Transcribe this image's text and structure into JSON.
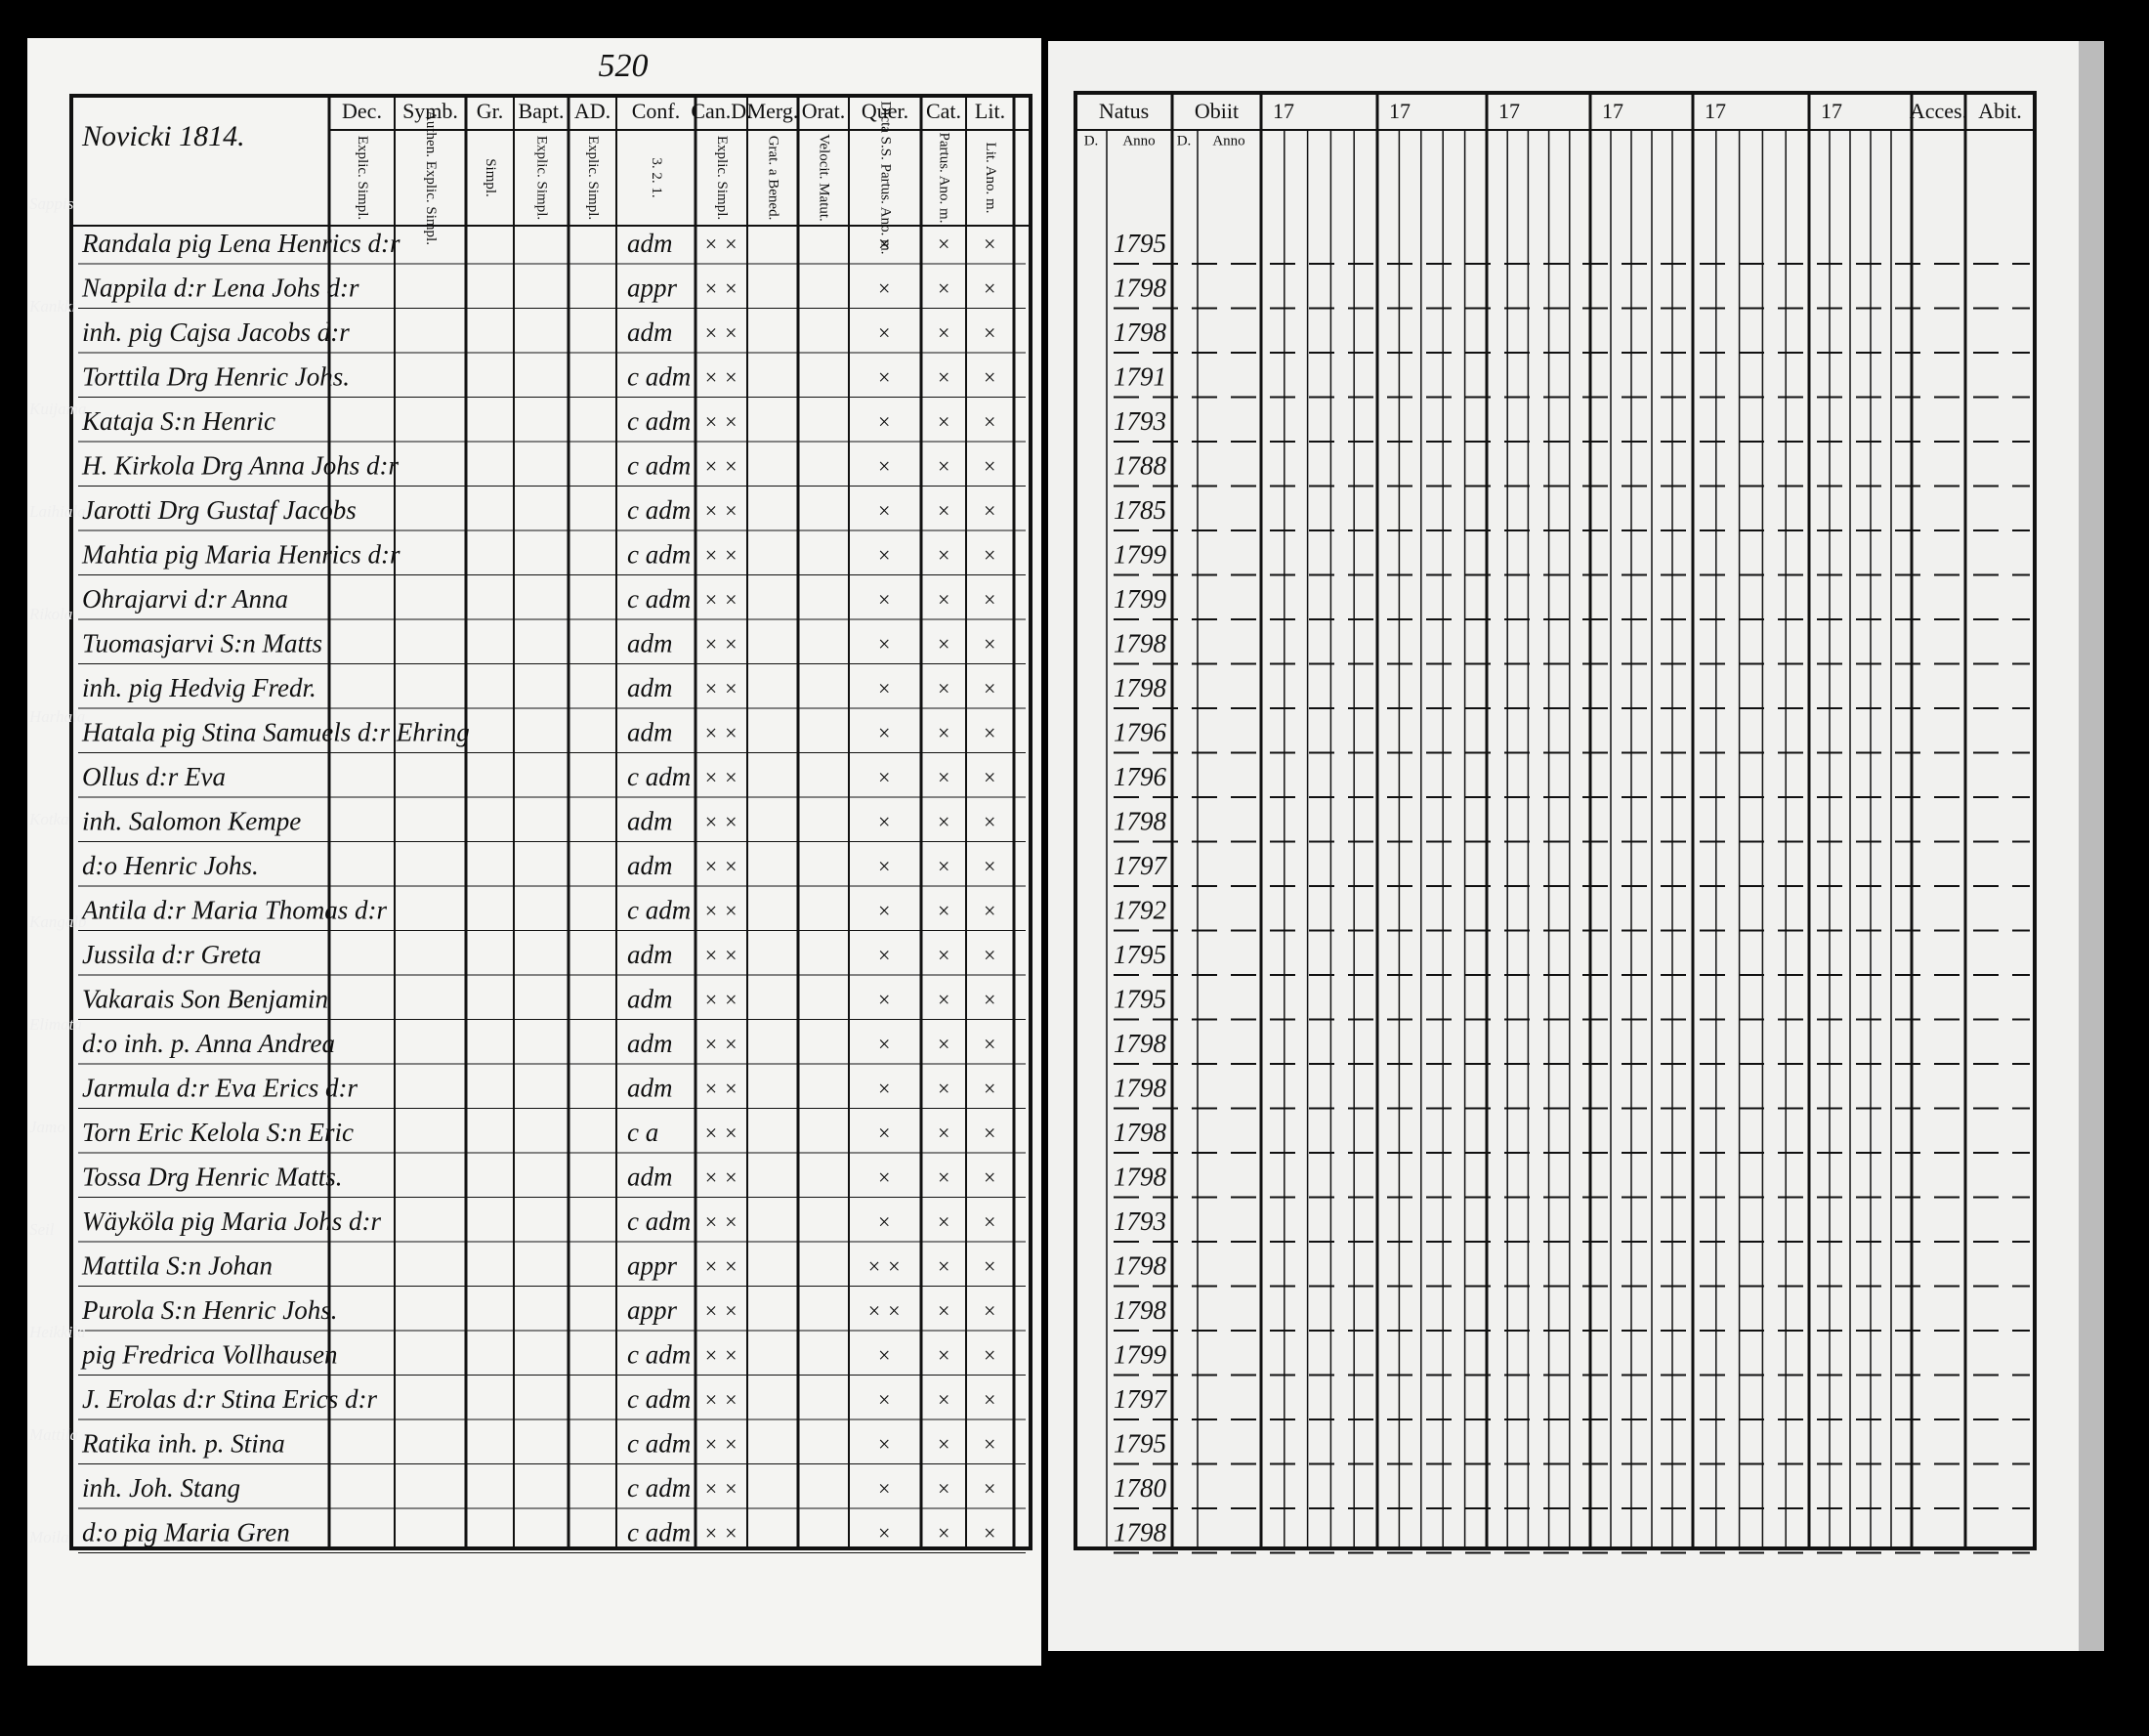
{
  "page_number": "520",
  "left_page": {
    "title": "Novicki 1814.",
    "column_headers": [
      "Dec.",
      "Symb.",
      "Gr.",
      "Bapt.",
      "AD.",
      "Conf.",
      "Can.D.",
      "Merg.",
      "Orat.",
      "Quer.",
      "Cat.",
      "Lit."
    ],
    "column_subheaders": [
      "Explic. Simpl.",
      "Authen. Explic. Simpl.",
      "Simpl.",
      "Explic. Simpl.",
      "Explic. Simpl.",
      "3. 2. 1.",
      "Explic. Simpl.",
      "Grat. a Bened.",
      "Velocit. Matut.",
      "Dicta S.S. Partus. Ano. m.",
      "Partus. Ano. m.",
      "Lit. Ano. m."
    ],
    "margin_notes": [
      "Sappis",
      "Kankki",
      "Kuijama",
      "Laihiala",
      "Rikola",
      "Harhala",
      "Kotka",
      "Kangalb",
      "Elimata",
      "Jamo",
      "Seil",
      "Heikkila",
      "Mattila",
      "Moila"
    ],
    "rows": [
      {
        "name": "Randala pig Lena Henrics d:r",
        "conf": "adm",
        "marks": [
          "× ×",
          "×",
          "×",
          "×"
        ]
      },
      {
        "name": "Nappila d:r Lena Johs d:r",
        "conf": "appr",
        "marks": [
          "× ×",
          "×",
          "×",
          "×"
        ]
      },
      {
        "name": "inh. pig Cajsa Jacobs d:r",
        "conf": "adm",
        "marks": [
          "× ×",
          "×",
          "×",
          "×"
        ]
      },
      {
        "name": "Torttila Drg Henric Johs.",
        "conf": "c adm",
        "marks": [
          "× ×",
          "×",
          "×",
          "×"
        ]
      },
      {
        "name": "Kataja S:n Henric",
        "conf": "c adm",
        "marks": [
          "× ×",
          "×",
          "×",
          "×"
        ]
      },
      {
        "name": "H. Kirkola Drg Anna Johs d:r",
        "conf": "c adm",
        "marks": [
          "× ×",
          "×",
          "×",
          "×"
        ]
      },
      {
        "name": "Jarotti Drg Gustaf Jacobs",
        "conf": "c adm",
        "marks": [
          "× ×",
          "×",
          "×",
          "×"
        ]
      },
      {
        "name": "Mahtia pig Maria Henrics d:r",
        "conf": "c adm",
        "marks": [
          "× ×",
          "×",
          "×",
          "×"
        ]
      },
      {
        "name": "Ohrajarvi d:r Anna",
        "conf": "c adm",
        "marks": [
          "× ×",
          "×",
          "×",
          "×"
        ]
      },
      {
        "name": "Tuomasjarvi S:n Matts",
        "conf": "adm",
        "marks": [
          "× ×",
          "×",
          "×",
          "×"
        ]
      },
      {
        "name": "inh. pig Hedvig Fredr.",
        "conf": "adm",
        "marks": [
          "× ×",
          "×",
          "×",
          "×"
        ]
      },
      {
        "name": "Hatala pig Stina Samuels d:r Ehring",
        "conf": "adm",
        "marks": [
          "× ×",
          "×",
          "×",
          "×"
        ]
      },
      {
        "name": "Ollus d:r Eva",
        "conf": "c adm",
        "marks": [
          "× ×",
          "×",
          "×",
          "×"
        ]
      },
      {
        "name": "inh. Salomon Kempe",
        "conf": "adm",
        "marks": [
          "× ×",
          "×",
          "×",
          "×"
        ]
      },
      {
        "name": "d:o Henric Johs.",
        "conf": "adm",
        "marks": [
          "× ×",
          "×",
          "×",
          "×"
        ]
      },
      {
        "name": "Antila d:r Maria Thomas d:r",
        "conf": "c adm",
        "marks": [
          "× ×",
          "×",
          "×",
          "×"
        ]
      },
      {
        "name": "Jussila d:r Greta",
        "conf": "adm",
        "marks": [
          "× ×",
          "×",
          "×",
          "×"
        ]
      },
      {
        "name": "Vakarais Son Benjamin",
        "conf": "adm",
        "marks": [
          "× ×",
          "×",
          "×",
          "×"
        ]
      },
      {
        "name": "d:o inh. p. Anna Andrea",
        "conf": "adm",
        "marks": [
          "× ×",
          "×",
          "×",
          "×"
        ]
      },
      {
        "name": "Jarmula d:r Eva Erics d:r",
        "conf": "adm",
        "marks": [
          "× ×",
          "×",
          "×",
          "×"
        ]
      },
      {
        "name": "Torn Eric Kelola S:n Eric",
        "conf": "c a",
        "marks": [
          "× ×",
          "×",
          "×",
          "×"
        ]
      },
      {
        "name": "Tossa Drg Henric Matts.",
        "conf": "adm",
        "marks": [
          "× ×",
          "×",
          "×",
          "×"
        ]
      },
      {
        "name": "Wäyköla pig Maria Johs d:r",
        "conf": "c adm",
        "marks": [
          "× ×",
          "×",
          "×",
          "×"
        ]
      },
      {
        "name": "Mattila S:n Johan",
        "conf": "appr",
        "marks": [
          "× ×",
          "× ×",
          "×",
          "×"
        ]
      },
      {
        "name": "Purola S:n Henric Johs.",
        "conf": "appr",
        "marks": [
          "× ×",
          "× ×",
          "×",
          "×"
        ]
      },
      {
        "name": "pig Fredrica Vollhausen",
        "conf": "c adm",
        "marks": [
          "× ×",
          "×",
          "×",
          "×"
        ]
      },
      {
        "name": "J. Erolas d:r Stina Erics d:r",
        "conf": "c adm",
        "marks": [
          "× ×",
          "×",
          "×",
          "×"
        ]
      },
      {
        "name": "Ratika inh. p. Stina",
        "conf": "c adm",
        "marks": [
          "× ×",
          "×",
          "×",
          "×"
        ]
      },
      {
        "name": "inh. Joh. Stang",
        "conf": "c adm",
        "marks": [
          "× ×",
          "×",
          "×",
          "×"
        ]
      },
      {
        "name": "d:o pig Maria Gren",
        "conf": "c adm",
        "marks": [
          "× ×",
          "×",
          "×",
          "×"
        ]
      }
    ]
  },
  "right_page": {
    "column_headers": [
      "Natus",
      "Obiit",
      "17",
      "17",
      "17",
      "17",
      "17",
      "17",
      "Acces.",
      "Abit."
    ],
    "column_subheaders": [
      "D.",
      "Anno",
      "D.",
      "Anno"
    ],
    "years": [
      "1795",
      "1798",
      "1798",
      "1791",
      "1793",
      "1788",
      "1785",
      "1799",
      "1799",
      "1798",
      "1798",
      "1796",
      "1796",
      "1798",
      "1797",
      "1792",
      "1795",
      "1795",
      "1798",
      "1798",
      "1798",
      "1798",
      "1793",
      "1798",
      "1798",
      "1799",
      "1797",
      "1795",
      "1780",
      "1798"
    ]
  }
}
